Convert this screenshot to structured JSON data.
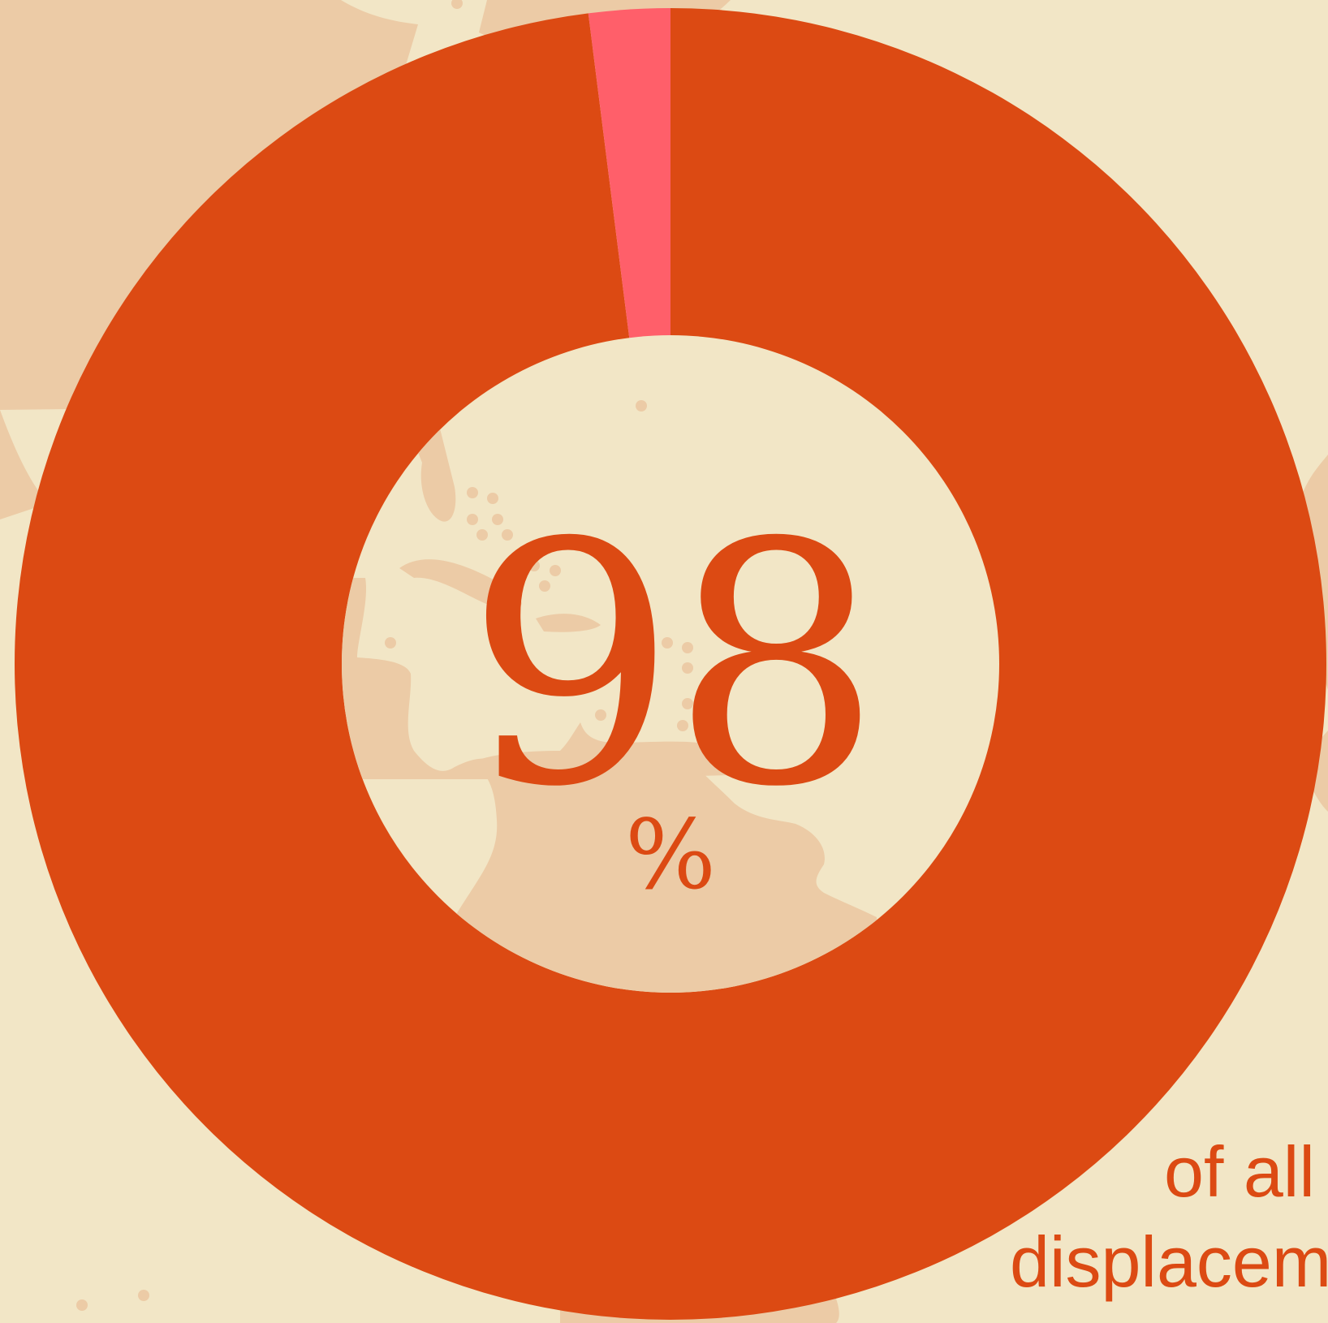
{
  "colors": {
    "background": "#F2E6C6",
    "land": "#ECCBA6",
    "main_segment": "#DC4A13",
    "minor_segment": "#FF5F6A"
  },
  "chart_data": {
    "type": "pie",
    "style": "donut",
    "slices": [
      {
        "value": 98,
        "color": "#DC4A13"
      },
      {
        "value": 2,
        "color": "#FF5F6A"
      }
    ],
    "center_value": "98",
    "center_unit": "%"
  },
  "caption": {
    "line1": "of all",
    "line2": "displacem"
  }
}
